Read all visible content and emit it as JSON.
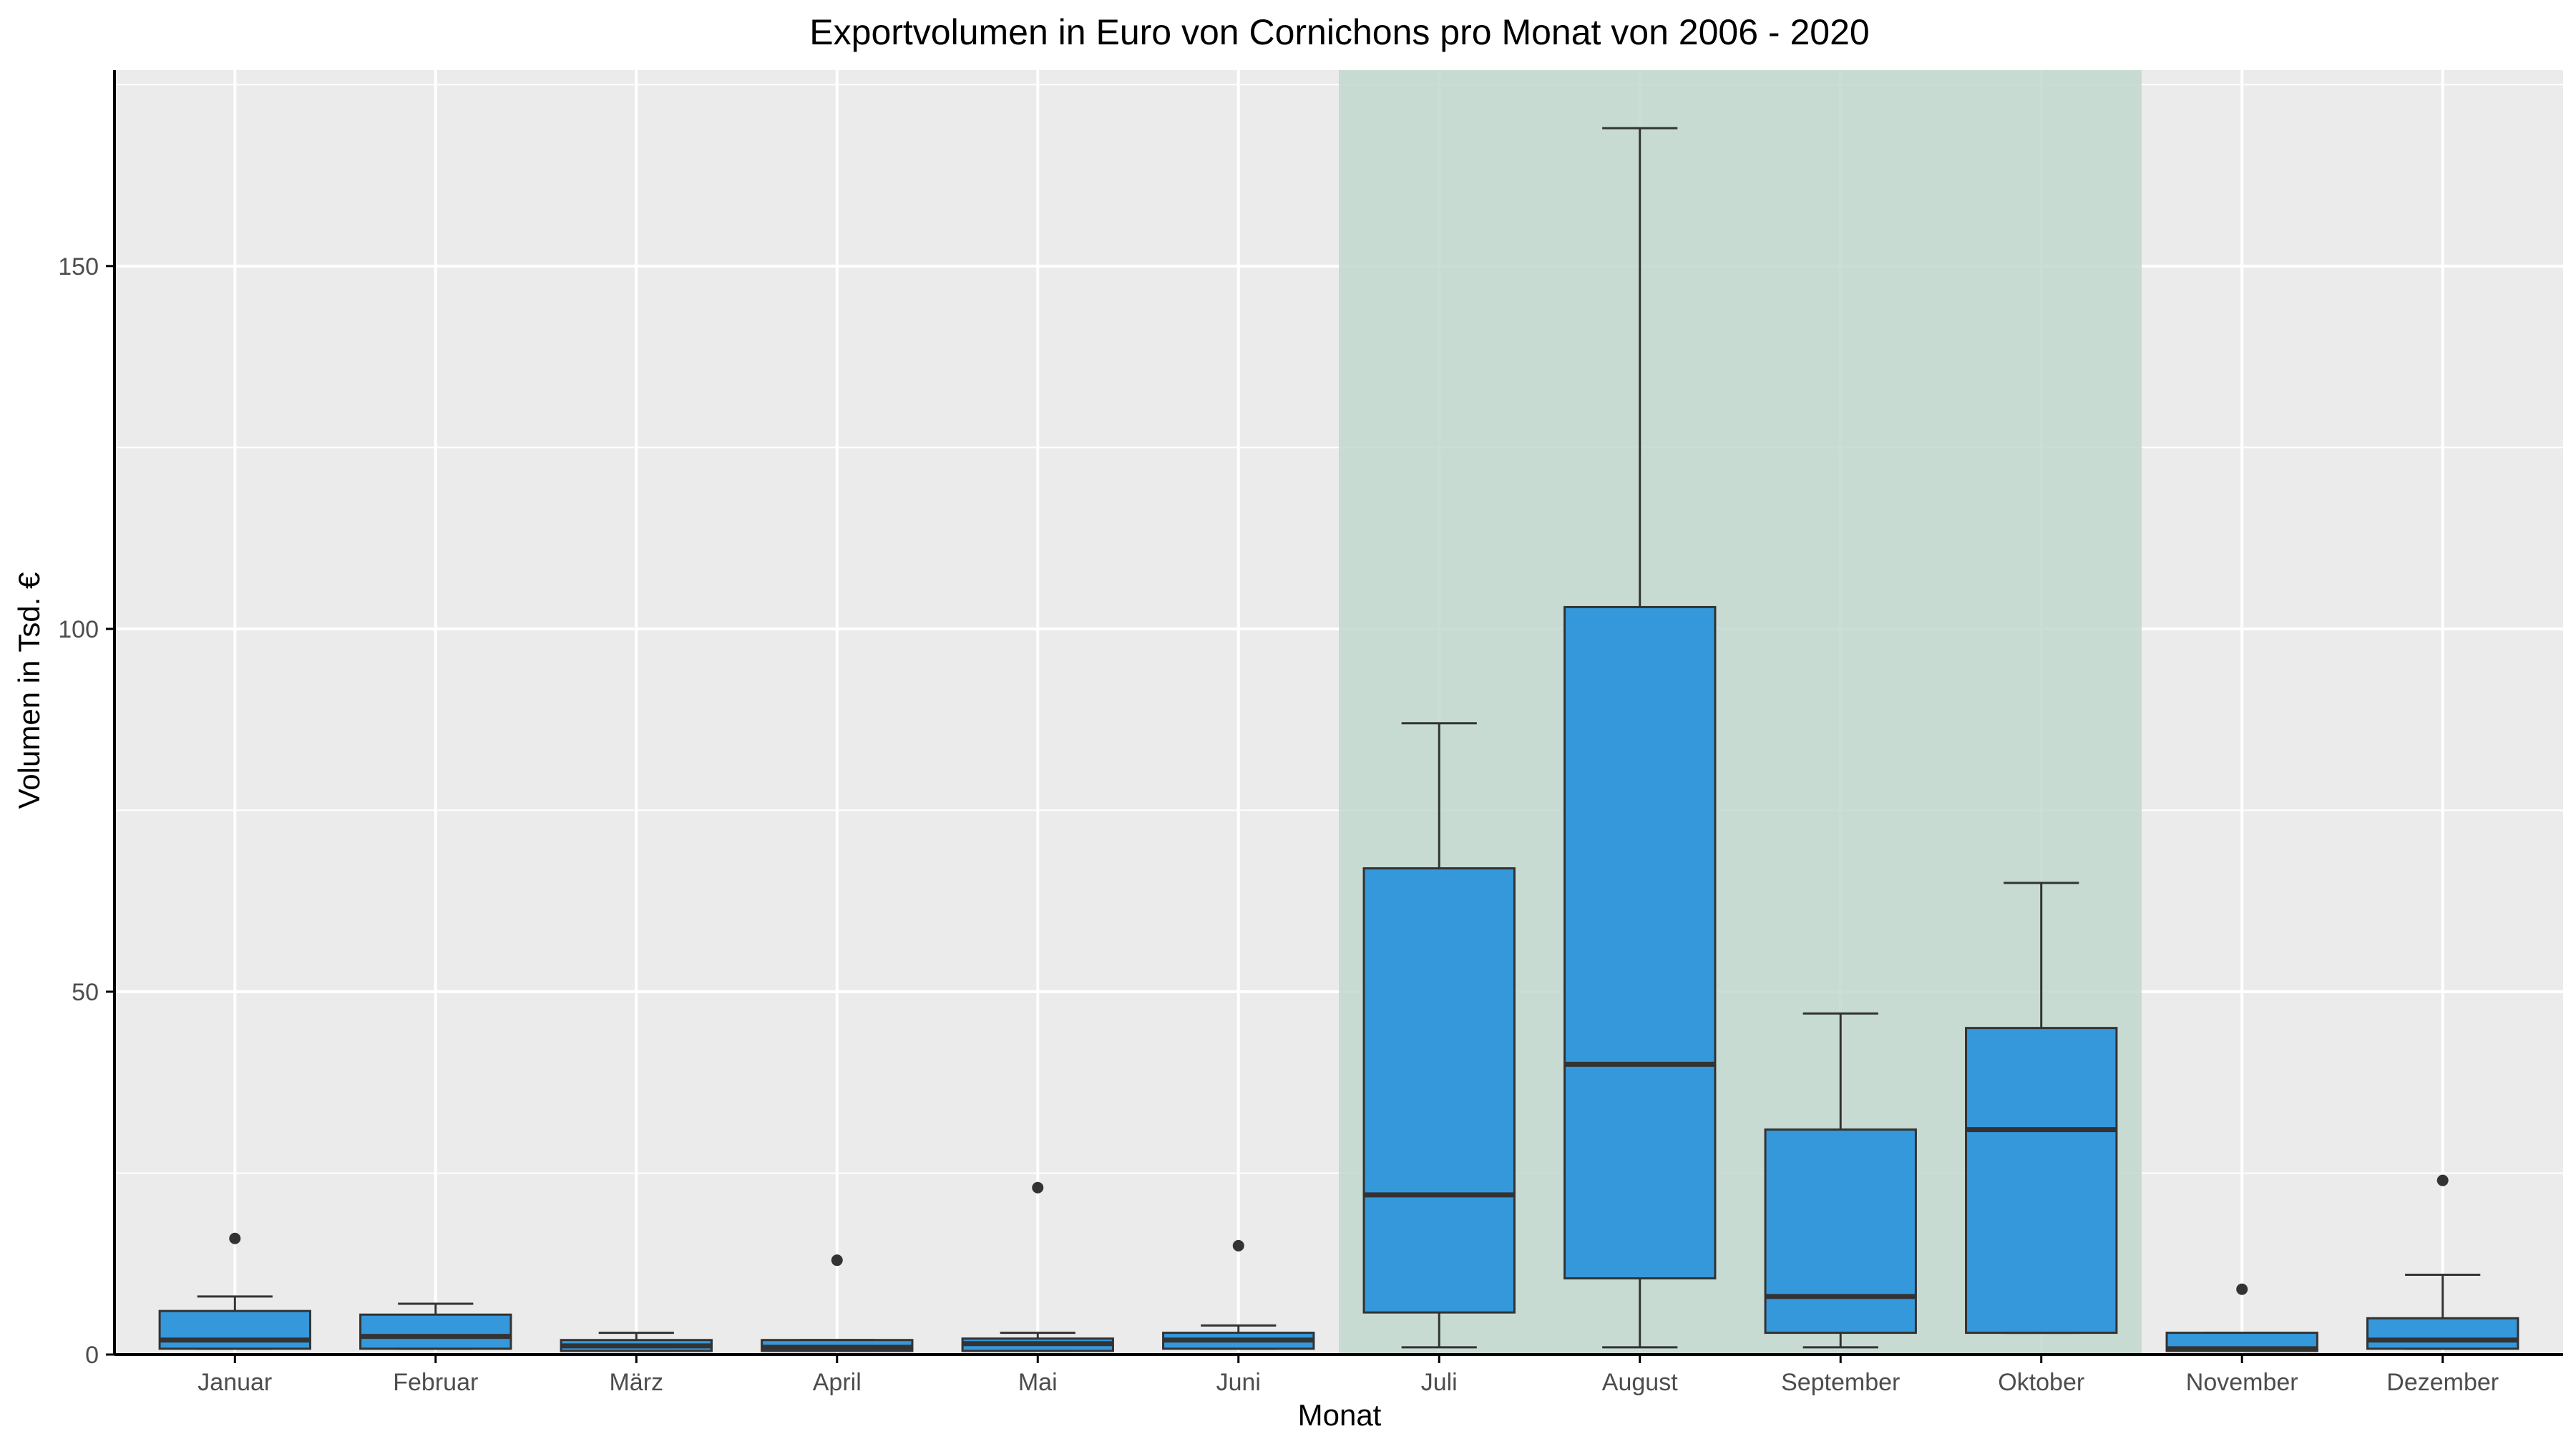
{
  "chart_data": {
    "type": "boxplot",
    "title": "Exportvolumen in Euro von Cornichons pro Monat von 2006 - 2020",
    "xlabel": "Monat",
    "ylabel": "Volumen in Tsd. €",
    "ylim": [
      0,
      177
    ],
    "yticks": [
      0,
      50,
      100,
      150
    ],
    "ytick_labels": [
      "0",
      "50",
      "100",
      "150"
    ],
    "grid": true,
    "highlight": {
      "from": "Juli",
      "to": "Oktober",
      "color": "#c2d8cf"
    },
    "colors": {
      "panel": "#ebebeb",
      "grid": "#ffffff",
      "box_fill": "#3598db",
      "box_stroke": "#333333",
      "axis": "#000000"
    },
    "categories": [
      "Januar",
      "Februar",
      "März",
      "April",
      "Mai",
      "Juni",
      "Juli",
      "August",
      "September",
      "Oktober",
      "November",
      "Dezember"
    ],
    "boxes": [
      {
        "name": "Januar",
        "whisker_low": 0.8,
        "q1": 0.8,
        "median": 2,
        "q3": 6,
        "whisker_high": 8,
        "outliers": [
          16
        ]
      },
      {
        "name": "Februar",
        "whisker_low": 0.8,
        "q1": 0.8,
        "median": 2.5,
        "q3": 5.5,
        "whisker_high": 7,
        "outliers": []
      },
      {
        "name": "März",
        "whisker_low": 0.5,
        "q1": 0.5,
        "median": 1.2,
        "q3": 2,
        "whisker_high": 3,
        "outliers": []
      },
      {
        "name": "April",
        "whisker_low": 0.5,
        "q1": 0.5,
        "median": 1,
        "q3": 2,
        "whisker_high": 2,
        "outliers": [
          13
        ]
      },
      {
        "name": "Mai",
        "whisker_low": 0.5,
        "q1": 0.5,
        "median": 1.5,
        "q3": 2.2,
        "whisker_high": 3,
        "outliers": [
          23
        ]
      },
      {
        "name": "Juni",
        "whisker_low": 0.8,
        "q1": 0.8,
        "median": 2,
        "q3": 3,
        "whisker_high": 4,
        "outliers": [
          15
        ]
      },
      {
        "name": "Juli",
        "whisker_low": 1,
        "q1": 5.8,
        "median": 22,
        "q3": 67,
        "whisker_high": 87,
        "outliers": []
      },
      {
        "name": "August",
        "whisker_low": 1,
        "q1": 10.5,
        "median": 40,
        "q3": 103,
        "whisker_high": 169,
        "outliers": []
      },
      {
        "name": "September",
        "whisker_low": 1,
        "q1": 3,
        "median": 8,
        "q3": 31,
        "whisker_high": 47,
        "outliers": []
      },
      {
        "name": "Oktober",
        "whisker_low": 3,
        "q1": 3,
        "median": 31,
        "q3": 45,
        "whisker_high": 65,
        "outliers": []
      },
      {
        "name": "November",
        "whisker_low": 0.5,
        "q1": 0.5,
        "median": 0.8,
        "q3": 3,
        "whisker_high": 3,
        "outliers": [
          9
        ]
      },
      {
        "name": "Dezember",
        "whisker_low": 0.8,
        "q1": 0.8,
        "median": 2,
        "q3": 5,
        "whisker_high": 11,
        "outliers": [
          24
        ]
      }
    ]
  }
}
